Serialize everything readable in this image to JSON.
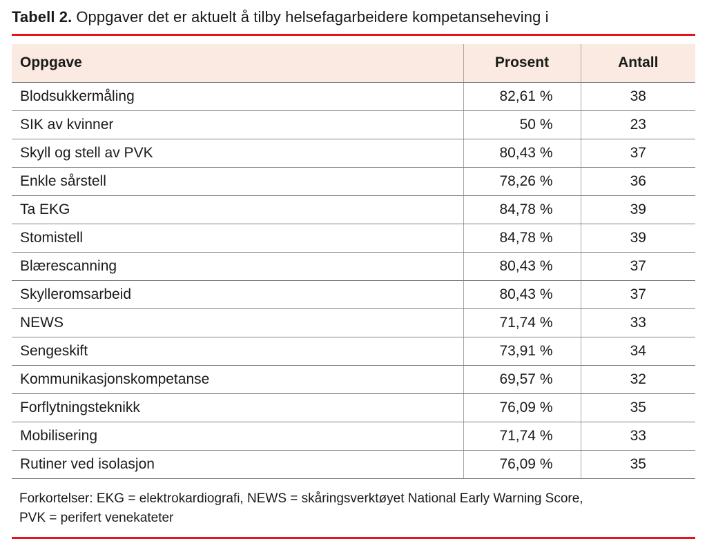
{
  "title": {
    "label": "Tabell 2.",
    "text": "Oppgaver det er aktuelt å tilby helsefagarbeidere kompetanseheving i"
  },
  "table": {
    "columns": [
      "Oppgave",
      "Prosent",
      "Antall"
    ],
    "rows": [
      {
        "oppgave": "Blodsukkermåling",
        "prosent": "82,61 %",
        "antall": "38"
      },
      {
        "oppgave": "SIK av kvinner",
        "prosent": "50 %",
        "antall": "23"
      },
      {
        "oppgave": "Skyll og stell av PVK",
        "prosent": "80,43 %",
        "antall": "37"
      },
      {
        "oppgave": "Enkle sårstell",
        "prosent": "78,26 %",
        "antall": "36"
      },
      {
        "oppgave": "Ta EKG",
        "prosent": "84,78 %",
        "antall": "39"
      },
      {
        "oppgave": "Stomistell",
        "prosent": "84,78 %",
        "antall": "39"
      },
      {
        "oppgave": "Blærescanning",
        "prosent": "80,43 %",
        "antall": "37"
      },
      {
        "oppgave": "Skylleromsarbeid",
        "prosent": "80,43 %",
        "antall": "37"
      },
      {
        "oppgave": "NEWS",
        "prosent": "71,74 %",
        "antall": "33"
      },
      {
        "oppgave": "Sengeskift",
        "prosent": "73,91 %",
        "antall": "34"
      },
      {
        "oppgave": "Kommunikasjonskompetanse",
        "prosent": "69,57 %",
        "antall": "32"
      },
      {
        "oppgave": "Forflytningsteknikk",
        "prosent": "76,09 %",
        "antall": "35"
      },
      {
        "oppgave": "Mobilisering",
        "prosent": "71,74 %",
        "antall": "33"
      },
      {
        "oppgave": "Rutiner ved isolasjon",
        "prosent": "76,09 %",
        "antall": "35"
      }
    ]
  },
  "footnote": {
    "line1": "Forkortelser: EKG = elektrokardiografi, NEWS = skåringsverktøyet National Early Warning Score,",
    "line2": "PVK = perifert venekateter"
  },
  "colors": {
    "accent_red": "#e8121c",
    "header_bg": "#fbeae1",
    "text": "#1a1a1a",
    "row_border": "#7f7f7f",
    "column_border": "#a6a6a6"
  }
}
